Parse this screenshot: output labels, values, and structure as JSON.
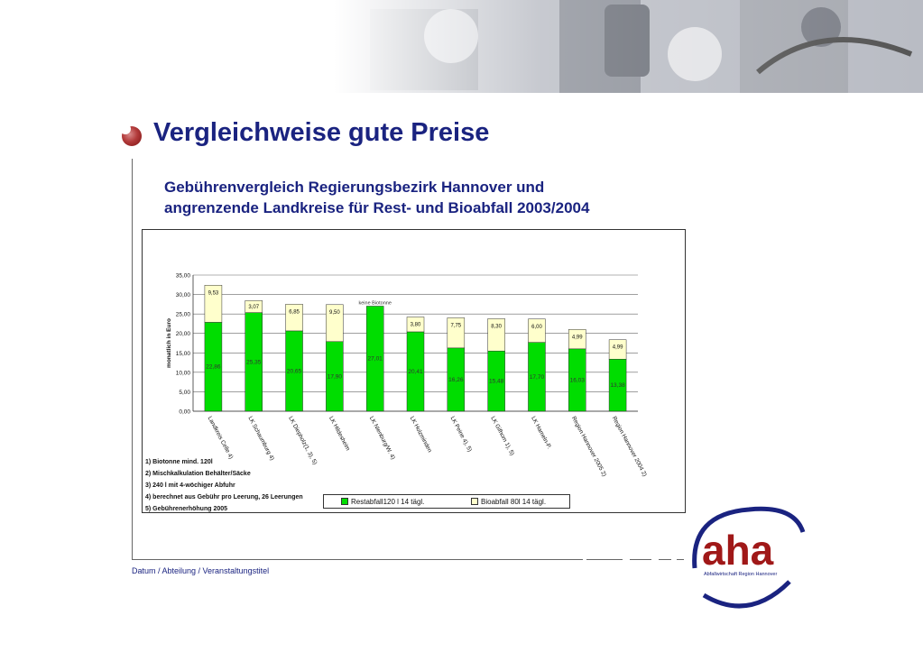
{
  "slide": {
    "title": "Vergleichweise gute Preise",
    "subtitle_line1": "Gebührenvergleich Regierungsbezirk Hannover und",
    "subtitle_line2": "angrenzende Landkreise für Rest- und Bioabfall 2003/2004",
    "footer": "Datum / Abteilung / Veranstaltungstitel"
  },
  "logo": {
    "text": "aha",
    "tagline": "Abfallwirtschaft Region Hannover"
  },
  "footnotes": [
    "1) Biotonne mind. 120l",
    "2) Mischkalkulation Behälter/Säcke",
    "3) 240 l mit 4-wöchiger Abfuhr",
    "4) berechnet aus Gebühr pro Leerung, 26 Leerungen",
    "5) Gebührenerhöhung 2005"
  ],
  "colors": {
    "rest": "#00dd00",
    "bio": "#ffffcc",
    "title": "#1a2380",
    "accent": "#a01818"
  },
  "chart_data": {
    "type": "bar",
    "stacked": true,
    "title": "",
    "xlabel": "",
    "ylabel": "monatlich in Euro",
    "ylim": [
      0,
      35
    ],
    "yticks": [
      "0,00",
      "5,00",
      "10,00",
      "15,00",
      "20,00",
      "25,00",
      "30,00",
      "35,00"
    ],
    "grid": true,
    "legend_position": "bottom",
    "categories": [
      "Landkreis Celle 4)",
      "LK Schaumburg 4)",
      "LK Diepholz(1, 3), 5)",
      "LK Hildesheim",
      "LK Nienburg/W. 4)",
      "LK Holzminden",
      "LK Peine 4), 5)",
      "LK Gifhorn 1), 5)",
      "LK Hameln-P.",
      "Region Hannover 2005 2)",
      "Region Hannover 2004 2)"
    ],
    "series": [
      {
        "name": "Restabfall120 l   14 tägl.",
        "values": [
          22.86,
          25.35,
          20.65,
          17.9,
          27.01,
          20.41,
          16.26,
          15.48,
          17.7,
          16.03,
          13.38
        ],
        "labels": [
          "22,86",
          "25,35",
          "20,65",
          "17,90",
          "27,01",
          "20,41",
          "16,26",
          "15,48",
          "17,70",
          "16,03",
          "13,38"
        ]
      },
      {
        "name": "Bioabfall 80l   14 tägl.",
        "values": [
          9.53,
          3.07,
          6.85,
          9.5,
          0,
          3.8,
          7.75,
          8.3,
          6.0,
          4.99,
          4.99
        ],
        "labels": [
          "9,53",
          "3,07",
          "6,85",
          "9,50",
          "",
          "3,80",
          "7,75",
          "8,30",
          "6,00",
          "4,99",
          "4,99"
        ]
      }
    ],
    "annotation": "keine Biotonne"
  }
}
